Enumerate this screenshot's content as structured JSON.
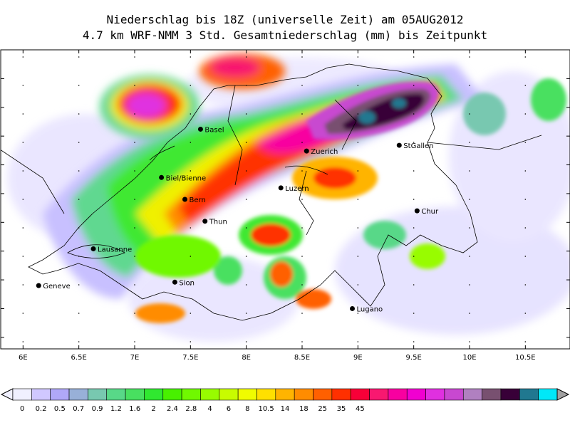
{
  "header": {
    "title_line1": "Niederschlag bis 18Z (universelle Zeit) am 05AUG2012",
    "title_line2": "4.7 km WRF-NMM 3 Std. Gesamtniederschlag (mm) bis Zeitpunkt"
  },
  "map": {
    "lon_range": [
      5.8,
      10.9
    ],
    "lat_range": [
      45.65,
      48.25
    ],
    "lon_ticks": [
      {
        "value": 6.0,
        "label": "6E"
      },
      {
        "value": 6.5,
        "label": "6.5E"
      },
      {
        "value": 7.0,
        "label": "7E"
      },
      {
        "value": 7.5,
        "label": "7.5E"
      },
      {
        "value": 8.0,
        "label": "8E"
      },
      {
        "value": 8.5,
        "label": "8.5E"
      },
      {
        "value": 9.0,
        "label": "9E"
      },
      {
        "value": 9.5,
        "label": "9.5E"
      },
      {
        "value": 10.0,
        "label": "10E"
      },
      {
        "value": 10.5,
        "label": "10.5E"
      }
    ],
    "cities": [
      {
        "name": "Basel",
        "lon": 7.59,
        "lat": 47.56
      },
      {
        "name": "Zuerich",
        "lon": 8.54,
        "lat": 47.37
      },
      {
        "name": "StGallen",
        "lon": 9.37,
        "lat": 47.42
      },
      {
        "name": "Biel/Bienne",
        "lon": 7.24,
        "lat": 47.14
      },
      {
        "name": "Luzern",
        "lon": 8.31,
        "lat": 47.05
      },
      {
        "name": "Bern",
        "lon": 7.45,
        "lat": 46.95
      },
      {
        "name": "Chur",
        "lon": 9.53,
        "lat": 46.85
      },
      {
        "name": "Thun",
        "lon": 7.63,
        "lat": 46.76
      },
      {
        "name": "Lausanne",
        "lon": 6.63,
        "lat": 46.52
      },
      {
        "name": "Geneve",
        "lon": 6.14,
        "lat": 46.2
      },
      {
        "name": "Sion",
        "lon": 7.36,
        "lat": 46.23
      },
      {
        "name": "Lugano",
        "lon": 8.95,
        "lat": 46.0
      }
    ]
  },
  "legend": {
    "colors": [
      "#f0f0ff",
      "#d0c8ff",
      "#b0a8f8",
      "#98b0d8",
      "#78c8b0",
      "#58d888",
      "#48e060",
      "#30e830",
      "#48f000",
      "#70f800",
      "#98fc00",
      "#c8fc00",
      "#f0fc00",
      "#ffe000",
      "#ffb400",
      "#ff8c00",
      "#ff6000",
      "#ff3000",
      "#f80038",
      "#f81870",
      "#f800a0",
      "#f000d0",
      "#e030e0",
      "#c848d0",
      "#b080c0",
      "#785070",
      "#380038",
      "#207890",
      "#00e8f8"
    ],
    "labels": [
      {
        "index": 1,
        "text": "0"
      },
      {
        "index": 3,
        "text": "0.2"
      },
      {
        "index": 5,
        "text": "0.5"
      },
      {
        "index": 7,
        "text": "0.7"
      },
      {
        "index": 9,
        "text": "0.9"
      },
      {
        "index": 11,
        "text": "1.2"
      },
      {
        "index": 13,
        "text": "1.6"
      },
      {
        "index": 15,
        "text": "2"
      },
      {
        "index": 17,
        "text": "2.4"
      },
      {
        "index": 19,
        "text": "2.8"
      },
      {
        "index": 21,
        "text": "4"
      },
      {
        "index": 23,
        "text": "6"
      },
      {
        "index": 25,
        "text": "8"
      },
      {
        "index": 27,
        "text": "10.5"
      },
      {
        "index": 29,
        "text": "14"
      },
      {
        "index": 31,
        "text": "18"
      },
      {
        "index": 33,
        "text": "25"
      },
      {
        "index": 35,
        "text": "35"
      },
      {
        "index": 37,
        "text": "45"
      }
    ]
  }
}
